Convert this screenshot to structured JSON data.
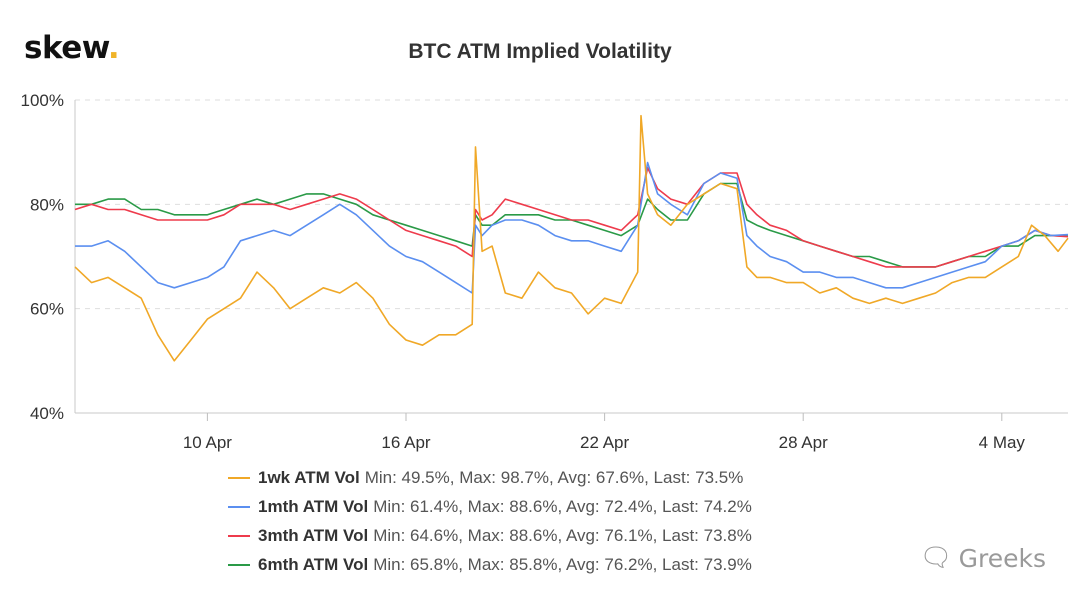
{
  "header": {
    "logo_text": "skew",
    "logo_dot": ".",
    "title": "BTC ATM Implied Volatility"
  },
  "legend": [
    {
      "name": "1wk ATM Vol",
      "stats": "Min: 49.5%, Max: 98.7%, Avg: 67.6%, Last: 73.5%",
      "color": "#f0a827"
    },
    {
      "name": "1mth ATM Vol",
      "stats": "Min: 61.4%, Max: 88.6%, Avg: 72.4%, Last: 74.2%",
      "color": "#5b8ff0"
    },
    {
      "name": "3mth ATM Vol",
      "stats": "Min: 64.6%, Max: 88.6%, Avg: 76.1%, Last: 73.8%",
      "color": "#ee3b4c"
    },
    {
      "name": "6mth ATM Vol",
      "stats": "Min: 65.8%, Max: 85.8%, Avg: 76.2%, Last: 73.9%",
      "color": "#2a9a47"
    }
  ],
  "watermark": {
    "icon": "wechat-icon",
    "text": "Greeks"
  },
  "chart_data": {
    "type": "line",
    "title": "BTC ATM Implied Volatility",
    "xlabel": "",
    "ylabel": "",
    "x_ticks": [
      "10 Apr",
      "16 Apr",
      "22 Apr",
      "28 Apr",
      "4 May"
    ],
    "x_tick_days": [
      10,
      16,
      22,
      28,
      34
    ],
    "xlim": [
      6,
      36.0
    ],
    "y_ticks": [
      "40%",
      "60%",
      "80%",
      "100%"
    ],
    "y_tick_values": [
      40,
      60,
      80,
      100
    ],
    "ylim": [
      40,
      100
    ],
    "grid": true,
    "legend_position": "bottom",
    "x_unit_note": "x values are day of April (31 = 1 May)",
    "series": [
      {
        "name": "1wk ATM Vol",
        "color": "#f0a827",
        "x": [
          6,
          6.5,
          7,
          7.5,
          8,
          8.5,
          9,
          9.5,
          10,
          10.5,
          11,
          11.5,
          12,
          12.5,
          13,
          13.5,
          14,
          14.5,
          15,
          15.5,
          16,
          16.5,
          17,
          17.5,
          18,
          18.1,
          18.3,
          18.6,
          19,
          19.5,
          20,
          20.5,
          21,
          21.5,
          22,
          22.5,
          23,
          23.1,
          23.3,
          23.6,
          24,
          24.5,
          25,
          25.5,
          26,
          26.3,
          26.6,
          27,
          27.5,
          28,
          28.5,
          29,
          29.5,
          30,
          30.5,
          31,
          31.5,
          32,
          32.5,
          33,
          33.5,
          34,
          34.5,
          34.9,
          35.3,
          35.7,
          36
        ],
        "y": [
          68,
          65,
          66,
          64,
          62,
          55,
          50,
          54,
          58,
          60,
          62,
          67,
          64,
          60,
          62,
          64,
          63,
          65,
          62,
          57,
          54,
          53,
          55,
          55,
          57,
          91,
          71,
          72,
          63,
          62,
          67,
          64,
          63,
          59,
          62,
          61,
          67,
          97,
          82,
          78,
          76,
          80,
          82,
          84,
          83,
          68,
          66,
          66,
          65,
          65,
          63,
          64,
          62,
          61,
          62,
          61,
          62,
          63,
          65,
          66,
          66,
          68,
          70,
          76,
          74,
          71,
          73.5
        ]
      },
      {
        "name": "1mth ATM Vol",
        "color": "#5b8ff0",
        "x": [
          6,
          6.5,
          7,
          7.5,
          8,
          8.5,
          9,
          9.5,
          10,
          10.5,
          11,
          11.5,
          12,
          12.5,
          13,
          13.5,
          14,
          14.5,
          15,
          15.5,
          16,
          16.5,
          17,
          17.5,
          18,
          18.1,
          18.3,
          18.6,
          19,
          19.5,
          20,
          20.5,
          21,
          21.5,
          22,
          22.5,
          23,
          23.3,
          23.6,
          24,
          24.5,
          25,
          25.5,
          26,
          26.3,
          26.6,
          27,
          27.5,
          28,
          28.5,
          29,
          29.5,
          30,
          30.5,
          31,
          31.5,
          32,
          32.5,
          33,
          33.5,
          34,
          34.5,
          35,
          35.5,
          36
        ],
        "y": [
          72,
          72,
          73,
          71,
          68,
          65,
          64,
          65,
          66,
          68,
          73,
          74,
          75,
          74,
          76,
          78,
          80,
          78,
          75,
          72,
          70,
          69,
          67,
          65,
          63,
          76,
          74,
          76,
          77,
          77,
          76,
          74,
          73,
          73,
          72,
          71,
          76,
          88,
          82,
          80,
          78,
          84,
          86,
          85,
          74,
          72,
          70,
          69,
          67,
          67,
          66,
          66,
          65,
          64,
          64,
          65,
          66,
          67,
          68,
          69,
          72,
          73,
          75,
          74,
          74.2
        ]
      },
      {
        "name": "3mth ATM Vol",
        "color": "#ee3b4c",
        "x": [
          6,
          6.5,
          7,
          7.5,
          8,
          8.5,
          9,
          9.5,
          10,
          10.5,
          11,
          11.5,
          12,
          12.5,
          13,
          13.5,
          14,
          14.5,
          15,
          15.5,
          16,
          16.5,
          17,
          17.5,
          18,
          18.1,
          18.3,
          18.6,
          19,
          19.5,
          20,
          20.5,
          21,
          21.5,
          22,
          22.5,
          23,
          23.3,
          23.6,
          24,
          24.5,
          25,
          25.5,
          26,
          26.3,
          26.6,
          27,
          27.5,
          28,
          28.5,
          29,
          29.5,
          30,
          30.5,
          31,
          31.5,
          32,
          32.5,
          33,
          33.5,
          34,
          34.5,
          35,
          35.5,
          36
        ],
        "y": [
          79,
          80,
          79,
          79,
          78,
          77,
          77,
          77,
          77,
          78,
          80,
          80,
          80,
          79,
          80,
          81,
          82,
          81,
          79,
          77,
          75,
          74,
          73,
          72,
          70,
          79,
          77,
          78,
          81,
          80,
          79,
          78,
          77,
          77,
          76,
          75,
          78,
          87,
          83,
          81,
          80,
          84,
          86,
          86,
          80,
          78,
          76,
          75,
          73,
          72,
          71,
          70,
          69,
          68,
          68,
          68,
          68,
          69,
          70,
          71,
          72,
          73,
          75,
          74,
          73.8
        ]
      },
      {
        "name": "6mth ATM Vol",
        "color": "#2a9a47",
        "x": [
          6,
          6.5,
          7,
          7.5,
          8,
          8.5,
          9,
          9.5,
          10,
          10.5,
          11,
          11.5,
          12,
          12.5,
          13,
          13.5,
          14,
          14.5,
          15,
          15.5,
          16,
          16.5,
          17,
          17.5,
          18,
          18.1,
          18.3,
          18.6,
          19,
          19.5,
          20,
          20.5,
          21,
          21.5,
          22,
          22.5,
          23,
          23.3,
          23.6,
          24,
          24.5,
          25,
          25.5,
          26,
          26.3,
          26.6,
          27,
          27.5,
          28,
          28.5,
          29,
          29.5,
          30,
          30.5,
          31,
          31.5,
          32,
          32.5,
          33,
          33.5,
          34,
          34.5,
          35,
          35.5,
          36
        ],
        "y": [
          80,
          80,
          81,
          81,
          79,
          79,
          78,
          78,
          78,
          79,
          80,
          81,
          80,
          81,
          82,
          82,
          81,
          80,
          78,
          77,
          76,
          75,
          74,
          73,
          72,
          78,
          76,
          76,
          78,
          78,
          78,
          77,
          77,
          76,
          75,
          74,
          76,
          81,
          79,
          77,
          77,
          82,
          84,
          84,
          77,
          76,
          75,
          74,
          73,
          72,
          71,
          70,
          70,
          69,
          68,
          68,
          68,
          69,
          70,
          70,
          72,
          72,
          74,
          74,
          73.9
        ]
      }
    ]
  }
}
